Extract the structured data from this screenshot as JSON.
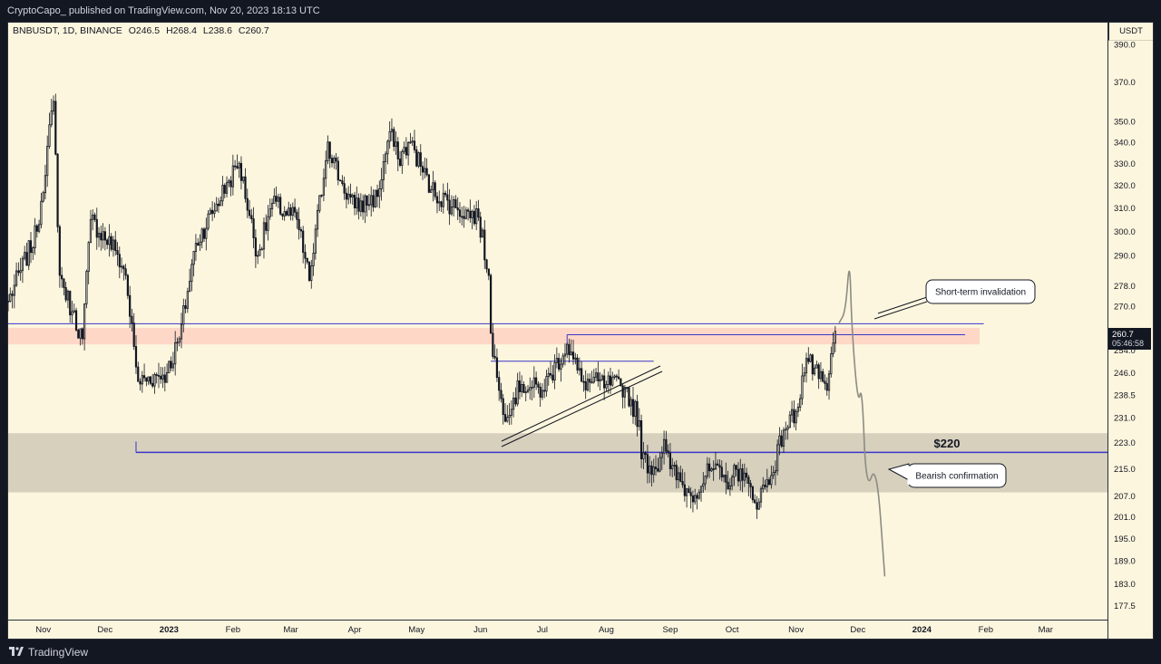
{
  "header": {
    "published": "CryptoCapo_ published on TradingView.com, Nov 20, 2023 18:13 UTC"
  },
  "legend": {
    "symbol": "BNBUSDT, 1D, BINANCE",
    "open": "O246.5",
    "high": "H268.4",
    "low": "L238.6",
    "close": "C260.7"
  },
  "footer": {
    "brand": "TradingView"
  },
  "price_axis": {
    "currency": "USDT",
    "current_price": "260.7",
    "countdown": "05:46:58",
    "ticks": [
      "390.0",
      "370.0",
      "350.0",
      "340.0",
      "330.0",
      "320.0",
      "310.0",
      "300.0",
      "290.0",
      "278.0",
      "270.0",
      "254.0",
      "246.0",
      "238.5",
      "231.0",
      "223.0",
      "215.0",
      "207.0",
      "201.0",
      "195.0",
      "189.0",
      "183.0",
      "177.5"
    ]
  },
  "time_axis": {
    "labels": [
      "Nov",
      "Dec",
      "2023",
      "Feb",
      "Mar",
      "Apr",
      "May",
      "Jun",
      "Jul",
      "Aug",
      "Sep",
      "Oct",
      "Nov",
      "Dec",
      "2024",
      "Feb",
      "Mar"
    ]
  },
  "annotations": {
    "invalidation": "Short-term invalidation",
    "bearish": "Bearish confirmation",
    "level": "$220"
  },
  "colors": {
    "background": "#fdf6de",
    "candles": "#131722",
    "resistance_zone": "#ffd0c0",
    "support_zone": "#d6d0bd",
    "horizontal_line": "#3a36c9",
    "projection": "#8c8c84"
  },
  "chart_data": {
    "type": "candlestick",
    "scale": "log",
    "ylim": [
      174,
      402
    ],
    "x_range": [
      "2022-10-15",
      "2024-03-31"
    ],
    "title": "",
    "xlabel": "",
    "ylabel": "",
    "key_prices": [
      {
        "date": "2022-10-15",
        "price": 272
      },
      {
        "date": "2022-10-29",
        "price": 300
      },
      {
        "date": "2022-11-06",
        "price": 360
      },
      {
        "date": "2022-11-09",
        "price": 282
      },
      {
        "date": "2022-11-15",
        "price": 268
      },
      {
        "date": "2022-11-20",
        "price": 258
      },
      {
        "date": "2022-11-24",
        "price": 305
      },
      {
        "date": "2022-12-06",
        "price": 292
      },
      {
        "date": "2022-12-11",
        "price": 282
      },
      {
        "date": "2022-12-16",
        "price": 248
      },
      {
        "date": "2022-12-17",
        "price": 243
      },
      {
        "date": "2022-12-31",
        "price": 246
      },
      {
        "date": "2023-01-06",
        "price": 258
      },
      {
        "date": "2023-01-14",
        "price": 295
      },
      {
        "date": "2023-01-30",
        "price": 322
      },
      {
        "date": "2023-02-04",
        "price": 330
      },
      {
        "date": "2023-02-13",
        "price": 290
      },
      {
        "date": "2023-02-20",
        "price": 312
      },
      {
        "date": "2023-03-04",
        "price": 305
      },
      {
        "date": "2023-03-10",
        "price": 280
      },
      {
        "date": "2023-03-19",
        "price": 340
      },
      {
        "date": "2023-03-25",
        "price": 322
      },
      {
        "date": "2023-04-01",
        "price": 310
      },
      {
        "date": "2023-04-12",
        "price": 315
      },
      {
        "date": "2023-04-18",
        "price": 345
      },
      {
        "date": "2023-04-22",
        "price": 332
      },
      {
        "date": "2023-04-28",
        "price": 340
      },
      {
        "date": "2023-05-08",
        "price": 318
      },
      {
        "date": "2023-05-20",
        "price": 310
      },
      {
        "date": "2023-05-31",
        "price": 306
      },
      {
        "date": "2023-06-05",
        "price": 282
      },
      {
        "date": "2023-06-06",
        "price": 260
      },
      {
        "date": "2023-06-10",
        "price": 240
      },
      {
        "date": "2023-06-12",
        "price": 232
      },
      {
        "date": "2023-06-21",
        "price": 242
      },
      {
        "date": "2023-07-01",
        "price": 240
      },
      {
        "date": "2023-07-13",
        "price": 256
      },
      {
        "date": "2023-07-20",
        "price": 243
      },
      {
        "date": "2023-08-01",
        "price": 242
      },
      {
        "date": "2023-08-10",
        "price": 241
      },
      {
        "date": "2023-08-17",
        "price": 230
      },
      {
        "date": "2023-08-18",
        "price": 218
      },
      {
        "date": "2023-08-25",
        "price": 215
      },
      {
        "date": "2023-08-29",
        "price": 224
      },
      {
        "date": "2023-09-01",
        "price": 215
      },
      {
        "date": "2023-09-11",
        "price": 207
      },
      {
        "date": "2023-09-21",
        "price": 215
      },
      {
        "date": "2023-09-28",
        "price": 211
      },
      {
        "date": "2023-10-05",
        "price": 215
      },
      {
        "date": "2023-10-12",
        "price": 205
      },
      {
        "date": "2023-10-20",
        "price": 213
      },
      {
        "date": "2023-10-26",
        "price": 227
      },
      {
        "date": "2023-11-01",
        "price": 233
      },
      {
        "date": "2023-11-06",
        "price": 251
      },
      {
        "date": "2023-11-12",
        "price": 244
      },
      {
        "date": "2023-11-16",
        "price": 240
      },
      {
        "date": "2023-11-20",
        "price": 260.7
      }
    ],
    "zones": [
      {
        "name": "resistance",
        "from": 256,
        "to": 262,
        "start": "2022-10-15",
        "end": "2024-01-29"
      },
      {
        "name": "support",
        "from": 208,
        "to": 226,
        "start": "2022-10-15",
        "end": "2024-03-31"
      }
    ],
    "lines": [
      {
        "price": 263.5,
        "start": "2022-10-15",
        "end": "2024-01-31"
      },
      {
        "price": 220,
        "start": "2022-12-16",
        "end": "2024-03-31"
      },
      {
        "price": 259.5,
        "start": "2023-07-13",
        "end": "2024-01-22"
      },
      {
        "price": 250,
        "start": "2023-06-06",
        "end": "2023-08-24"
      }
    ],
    "projection_path": [
      {
        "date": "2023-11-22",
        "price": 264
      },
      {
        "date": "2023-11-25",
        "price": 268
      },
      {
        "date": "2023-11-27",
        "price": 290
      },
      {
        "date": "2023-11-28",
        "price": 262
      },
      {
        "date": "2023-12-01",
        "price": 235
      },
      {
        "date": "2023-12-03",
        "price": 242
      },
      {
        "date": "2023-12-05",
        "price": 208
      },
      {
        "date": "2023-12-10",
        "price": 217
      },
      {
        "date": "2023-12-14",
        "price": 185
      }
    ]
  }
}
